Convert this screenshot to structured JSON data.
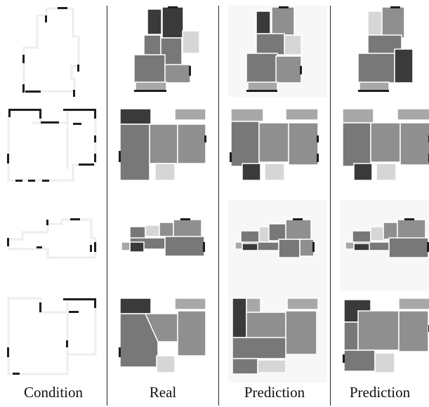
{
  "figure": {
    "column_labels": [
      "Condition",
      "Real",
      "Prediction",
      "Prediction"
    ]
  },
  "colors": {
    "room_dark": "#3a3a3a",
    "room_medium": "#787878",
    "room_gray": "#8f8f8f",
    "room_light": "#d6d6d6",
    "room_balcony": "#a8a8a8",
    "wall": "#1e1e1e",
    "outline": "#ececec",
    "panel_bg": "#f7f7f7"
  },
  "rows": [
    {
      "condition": {
        "icon": "floorplan-outline-1"
      },
      "real": {
        "icon": "floorplan-rooms-1-real"
      },
      "prediction_a": {
        "icon": "floorplan-rooms-1-pred-a"
      },
      "prediction_b": {
        "icon": "floorplan-rooms-1-pred-b"
      }
    },
    {
      "condition": {
        "icon": "floorplan-outline-2"
      },
      "real": {
        "icon": "floorplan-rooms-2-real"
      },
      "prediction_a": {
        "icon": "floorplan-rooms-2-pred-a"
      },
      "prediction_b": {
        "icon": "floorplan-rooms-2-pred-b"
      }
    },
    {
      "condition": {
        "icon": "floorplan-outline-3"
      },
      "real": {
        "icon": "floorplan-rooms-3-real"
      },
      "prediction_a": {
        "icon": "floorplan-rooms-3-pred-a"
      },
      "prediction_b": {
        "icon": "floorplan-rooms-3-pred-b"
      }
    },
    {
      "condition": {
        "icon": "floorplan-outline-4"
      },
      "real": {
        "icon": "floorplan-rooms-4-real"
      },
      "prediction_a": {
        "icon": "floorplan-rooms-4-pred-a"
      },
      "prediction_b": {
        "icon": "floorplan-rooms-4-pred-b"
      }
    }
  ]
}
